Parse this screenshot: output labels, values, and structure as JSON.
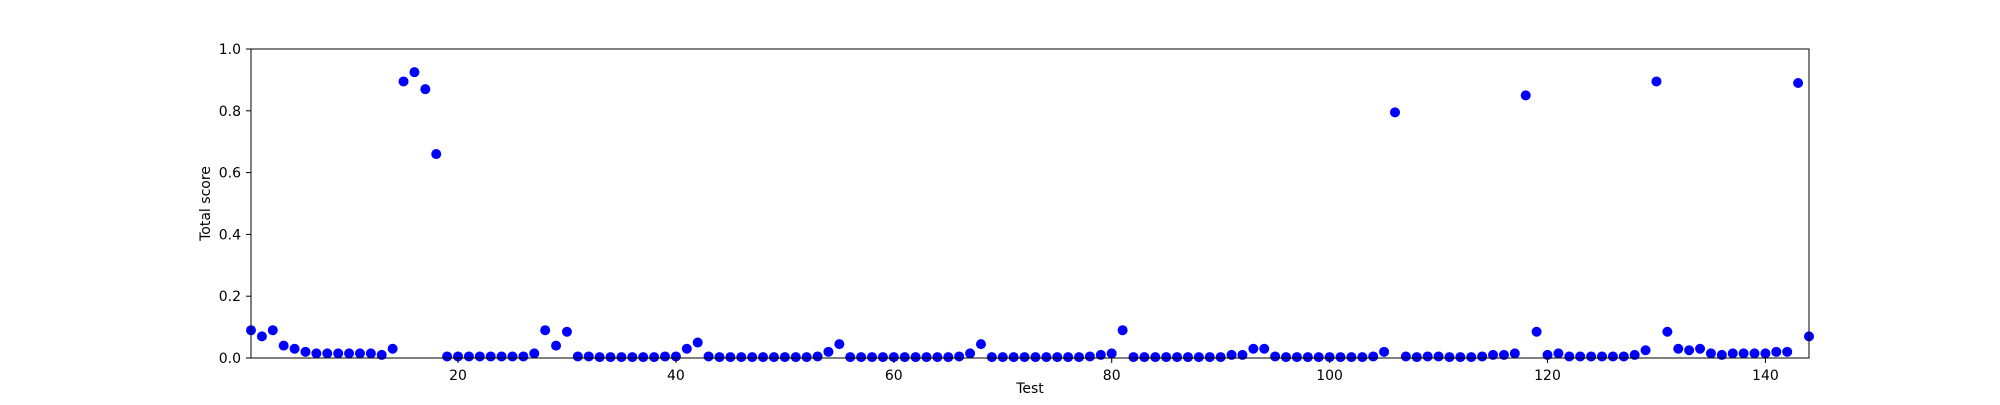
{
  "chart_data": {
    "type": "scatter",
    "title": "",
    "xlabel": "Test",
    "ylabel": "Total score",
    "xlim": [
      1,
      144
    ],
    "ylim": [
      0.0,
      1.0
    ],
    "xticks": [
      20,
      40,
      60,
      80,
      100,
      120,
      140
    ],
    "yticks": [
      0.0,
      0.2,
      0.4,
      0.6,
      0.8,
      1.0
    ],
    "ytick_labels": [
      "0.0",
      "0.2",
      "0.4",
      "0.6",
      "0.8",
      "1.0"
    ],
    "grid": false,
    "legend": "none",
    "marker_color": "#0000ff",
    "series": [
      {
        "x": [
          1,
          2,
          3,
          4,
          5,
          6,
          7,
          8,
          9,
          10,
          11,
          12,
          13,
          14,
          15,
          16,
          17,
          18,
          19,
          20,
          21,
          22,
          23,
          24,
          25,
          26,
          27,
          28,
          29,
          30,
          31,
          32,
          33,
          34,
          35,
          36,
          37,
          38,
          39,
          40,
          41,
          42,
          43,
          44,
          45,
          46,
          47,
          48,
          49,
          50,
          51,
          52,
          53,
          54,
          55,
          56,
          57,
          58,
          59,
          60,
          61,
          62,
          63,
          64,
          65,
          66,
          67,
          68,
          69,
          70,
          71,
          72,
          73,
          74,
          75,
          76,
          77,
          78,
          79,
          80,
          81,
          82,
          83,
          84,
          85,
          86,
          87,
          88,
          89,
          90,
          91,
          92,
          93,
          94,
          95,
          96,
          97,
          98,
          99,
          100,
          101,
          102,
          103,
          104,
          105,
          106,
          107,
          108,
          109,
          110,
          111,
          112,
          113,
          114,
          115,
          116,
          117,
          118,
          119,
          120,
          121,
          122,
          123,
          124,
          125,
          126,
          127,
          128,
          129,
          130,
          131,
          132,
          133,
          134,
          135,
          136,
          137,
          138,
          139,
          140,
          141,
          142,
          143,
          144
        ],
        "y": [
          0.09,
          0.07,
          0.09,
          0.04,
          0.03,
          0.02,
          0.015,
          0.015,
          0.015,
          0.015,
          0.015,
          0.015,
          0.01,
          0.03,
          0.895,
          0.925,
          0.87,
          0.66,
          0.005,
          0.005,
          0.005,
          0.005,
          0.005,
          0.005,
          0.005,
          0.005,
          0.015,
          0.09,
          0.04,
          0.085,
          0.005,
          0.005,
          0.003,
          0.003,
          0.003,
          0.003,
          0.003,
          0.003,
          0.005,
          0.005,
          0.03,
          0.05,
          0.005,
          0.003,
          0.003,
          0.003,
          0.003,
          0.003,
          0.003,
          0.003,
          0.003,
          0.003,
          0.005,
          0.02,
          0.045,
          0.003,
          0.003,
          0.003,
          0.003,
          0.003,
          0.003,
          0.003,
          0.003,
          0.003,
          0.003,
          0.005,
          0.015,
          0.045,
          0.003,
          0.003,
          0.003,
          0.003,
          0.003,
          0.003,
          0.003,
          0.003,
          0.003,
          0.005,
          0.01,
          0.015,
          0.09,
          0.003,
          0.003,
          0.003,
          0.003,
          0.003,
          0.003,
          0.003,
          0.003,
          0.003,
          0.01,
          0.01,
          0.03,
          0.03,
          0.005,
          0.003,
          0.003,
          0.003,
          0.003,
          0.003,
          0.003,
          0.003,
          0.003,
          0.005,
          0.02,
          0.795,
          0.005,
          0.003,
          0.005,
          0.005,
          0.003,
          0.003,
          0.003,
          0.005,
          0.01,
          0.01,
          0.015,
          0.85,
          0.085,
          0.01,
          0.015,
          0.005,
          0.005,
          0.005,
          0.005,
          0.005,
          0.005,
          0.01,
          0.025,
          0.895,
          0.085,
          0.03,
          0.025,
          0.03,
          0.015,
          0.01,
          0.015,
          0.015,
          0.015,
          0.015,
          0.02,
          0.02,
          0.89,
          0.07
        ]
      }
    ]
  }
}
